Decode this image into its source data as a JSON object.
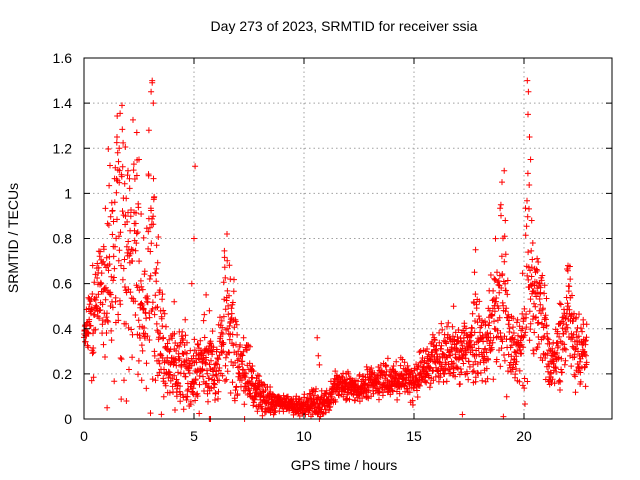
{
  "chart_data": {
    "type": "scatter",
    "title": "Day 273 of 2023, SRMTID for receiver ssia",
    "xlabel": "GPS time / hours",
    "ylabel": "SRMTID / TECUs",
    "xlim": [
      0,
      24
    ],
    "ylim": [
      0,
      1.6
    ],
    "xticks": [
      0,
      5,
      10,
      15,
      20
    ],
    "xtick_labels": [
      "0",
      "5",
      "10",
      "15",
      "20"
    ],
    "yticks": [
      0,
      0.2,
      0.4,
      0.6,
      0.8,
      1,
      1.2,
      1.4,
      1.6
    ],
    "ytick_labels": [
      "0",
      "0.2",
      "0.4",
      "0.6",
      "0.8",
      "1",
      "1.2",
      "1.4",
      "1.6"
    ],
    "grid": true,
    "legend": "none",
    "marker": "plus",
    "color": "#ff0000",
    "envelope": [
      [
        0.0,
        0.38,
        0.03
      ],
      [
        0.2,
        0.4,
        0.06
      ],
      [
        0.45,
        0.45,
        0.12
      ],
      [
        0.65,
        0.62,
        0.1
      ],
      [
        0.9,
        0.6,
        0.15
      ],
      [
        1.2,
        0.65,
        0.25
      ],
      [
        1.5,
        0.75,
        0.35
      ],
      [
        1.8,
        0.8,
        0.3
      ],
      [
        2.0,
        0.7,
        0.2
      ],
      [
        2.3,
        0.85,
        0.3
      ],
      [
        2.55,
        0.6,
        0.2
      ],
      [
        2.8,
        0.4,
        0.1
      ],
      [
        3.05,
        0.95,
        0.4
      ],
      [
        3.3,
        0.5,
        0.2
      ],
      [
        3.6,
        0.3,
        0.1
      ],
      [
        4.0,
        0.22,
        0.08
      ],
      [
        4.5,
        0.24,
        0.08
      ],
      [
        5.0,
        0.2,
        0.06
      ],
      [
        5.5,
        0.24,
        0.1
      ],
      [
        6.0,
        0.2,
        0.06
      ],
      [
        6.5,
        0.45,
        0.18
      ],
      [
        7.0,
        0.25,
        0.08
      ],
      [
        7.5,
        0.18,
        0.06
      ],
      [
        8.0,
        0.1,
        0.04
      ],
      [
        8.5,
        0.08,
        0.03
      ],
      [
        9.0,
        0.07,
        0.02
      ],
      [
        9.5,
        0.06,
        0.02
      ],
      [
        10.0,
        0.06,
        0.02
      ],
      [
        10.5,
        0.06,
        0.03
      ],
      [
        11.0,
        0.08,
        0.03
      ],
      [
        11.5,
        0.15,
        0.03
      ],
      [
        12.0,
        0.15,
        0.03
      ],
      [
        12.5,
        0.13,
        0.03
      ],
      [
        13.0,
        0.16,
        0.04
      ],
      [
        13.5,
        0.17,
        0.04
      ],
      [
        14.0,
        0.16,
        0.04
      ],
      [
        14.5,
        0.18,
        0.04
      ],
      [
        15.0,
        0.17,
        0.04
      ],
      [
        15.5,
        0.22,
        0.05
      ],
      [
        16.0,
        0.26,
        0.06
      ],
      [
        16.5,
        0.3,
        0.06
      ],
      [
        17.0,
        0.28,
        0.06
      ],
      [
        17.5,
        0.3,
        0.06
      ],
      [
        17.8,
        0.4,
        0.12
      ],
      [
        18.2,
        0.3,
        0.08
      ],
      [
        18.6,
        0.45,
        0.12
      ],
      [
        19.0,
        0.6,
        0.25
      ],
      [
        19.3,
        0.4,
        0.1
      ],
      [
        19.6,
        0.3,
        0.08
      ],
      [
        19.9,
        0.35,
        0.1
      ],
      [
        20.15,
        0.7,
        0.3
      ],
      [
        20.5,
        0.45,
        0.12
      ],
      [
        20.8,
        0.5,
        0.12
      ],
      [
        21.2,
        0.25,
        0.06
      ],
      [
        21.6,
        0.3,
        0.08
      ],
      [
        22.0,
        0.5,
        0.12
      ],
      [
        22.3,
        0.3,
        0.08
      ],
      [
        22.6,
        0.3,
        0.08
      ],
      [
        22.85,
        0.3,
        0.08
      ]
    ],
    "notable_points": [
      [
        3.1,
        1.49
      ],
      [
        3.05,
        1.45
      ],
      [
        3.15,
        1.4
      ],
      [
        2.95,
        1.28
      ],
      [
        1.5,
        1.25
      ],
      [
        1.6,
        1.2
      ],
      [
        2.0,
        1.1
      ],
      [
        2.4,
        1.27
      ],
      [
        2.5,
        1.15
      ],
      [
        5.05,
        1.12
      ],
      [
        5.0,
        0.8
      ],
      [
        4.9,
        0.6
      ],
      [
        6.5,
        0.82
      ],
      [
        6.65,
        0.62
      ],
      [
        5.55,
        0.55
      ],
      [
        5.7,
        0.48
      ],
      [
        4.1,
        0.52
      ],
      [
        4.6,
        0.44
      ],
      [
        10.6,
        0.36
      ],
      [
        10.65,
        0.28
      ],
      [
        10.7,
        0.24
      ],
      [
        17.8,
        0.75
      ],
      [
        17.75,
        0.65
      ],
      [
        19.1,
        1.1
      ],
      [
        19.0,
        1.05
      ],
      [
        18.95,
        0.95
      ],
      [
        19.15,
        0.88
      ],
      [
        20.15,
        1.5
      ],
      [
        20.2,
        1.45
      ],
      [
        20.18,
        1.35
      ],
      [
        20.25,
        1.25
      ],
      [
        20.3,
        1.15
      ],
      [
        20.35,
        0.88
      ],
      [
        20.4,
        0.78
      ],
      [
        22.0,
        0.68
      ],
      [
        22.1,
        0.62
      ],
      [
        22.7,
        0.42
      ],
      [
        22.85,
        0.42
      ],
      [
        20.6,
        0.58
      ],
      [
        20.75,
        0.56
      ],
      [
        18.45,
        0.48
      ],
      [
        18.7,
        0.52
      ],
      [
        16.8,
        0.5
      ],
      [
        17.2,
        0.02
      ],
      [
        5.7,
        0.0
      ],
      [
        5.75,
        0.0
      ],
      [
        10.7,
        0.0
      ],
      [
        7.3,
        0.0
      ],
      [
        1.05,
        0.05
      ],
      [
        3.6,
        0.18
      ]
    ],
    "generated_points": 2300
  }
}
